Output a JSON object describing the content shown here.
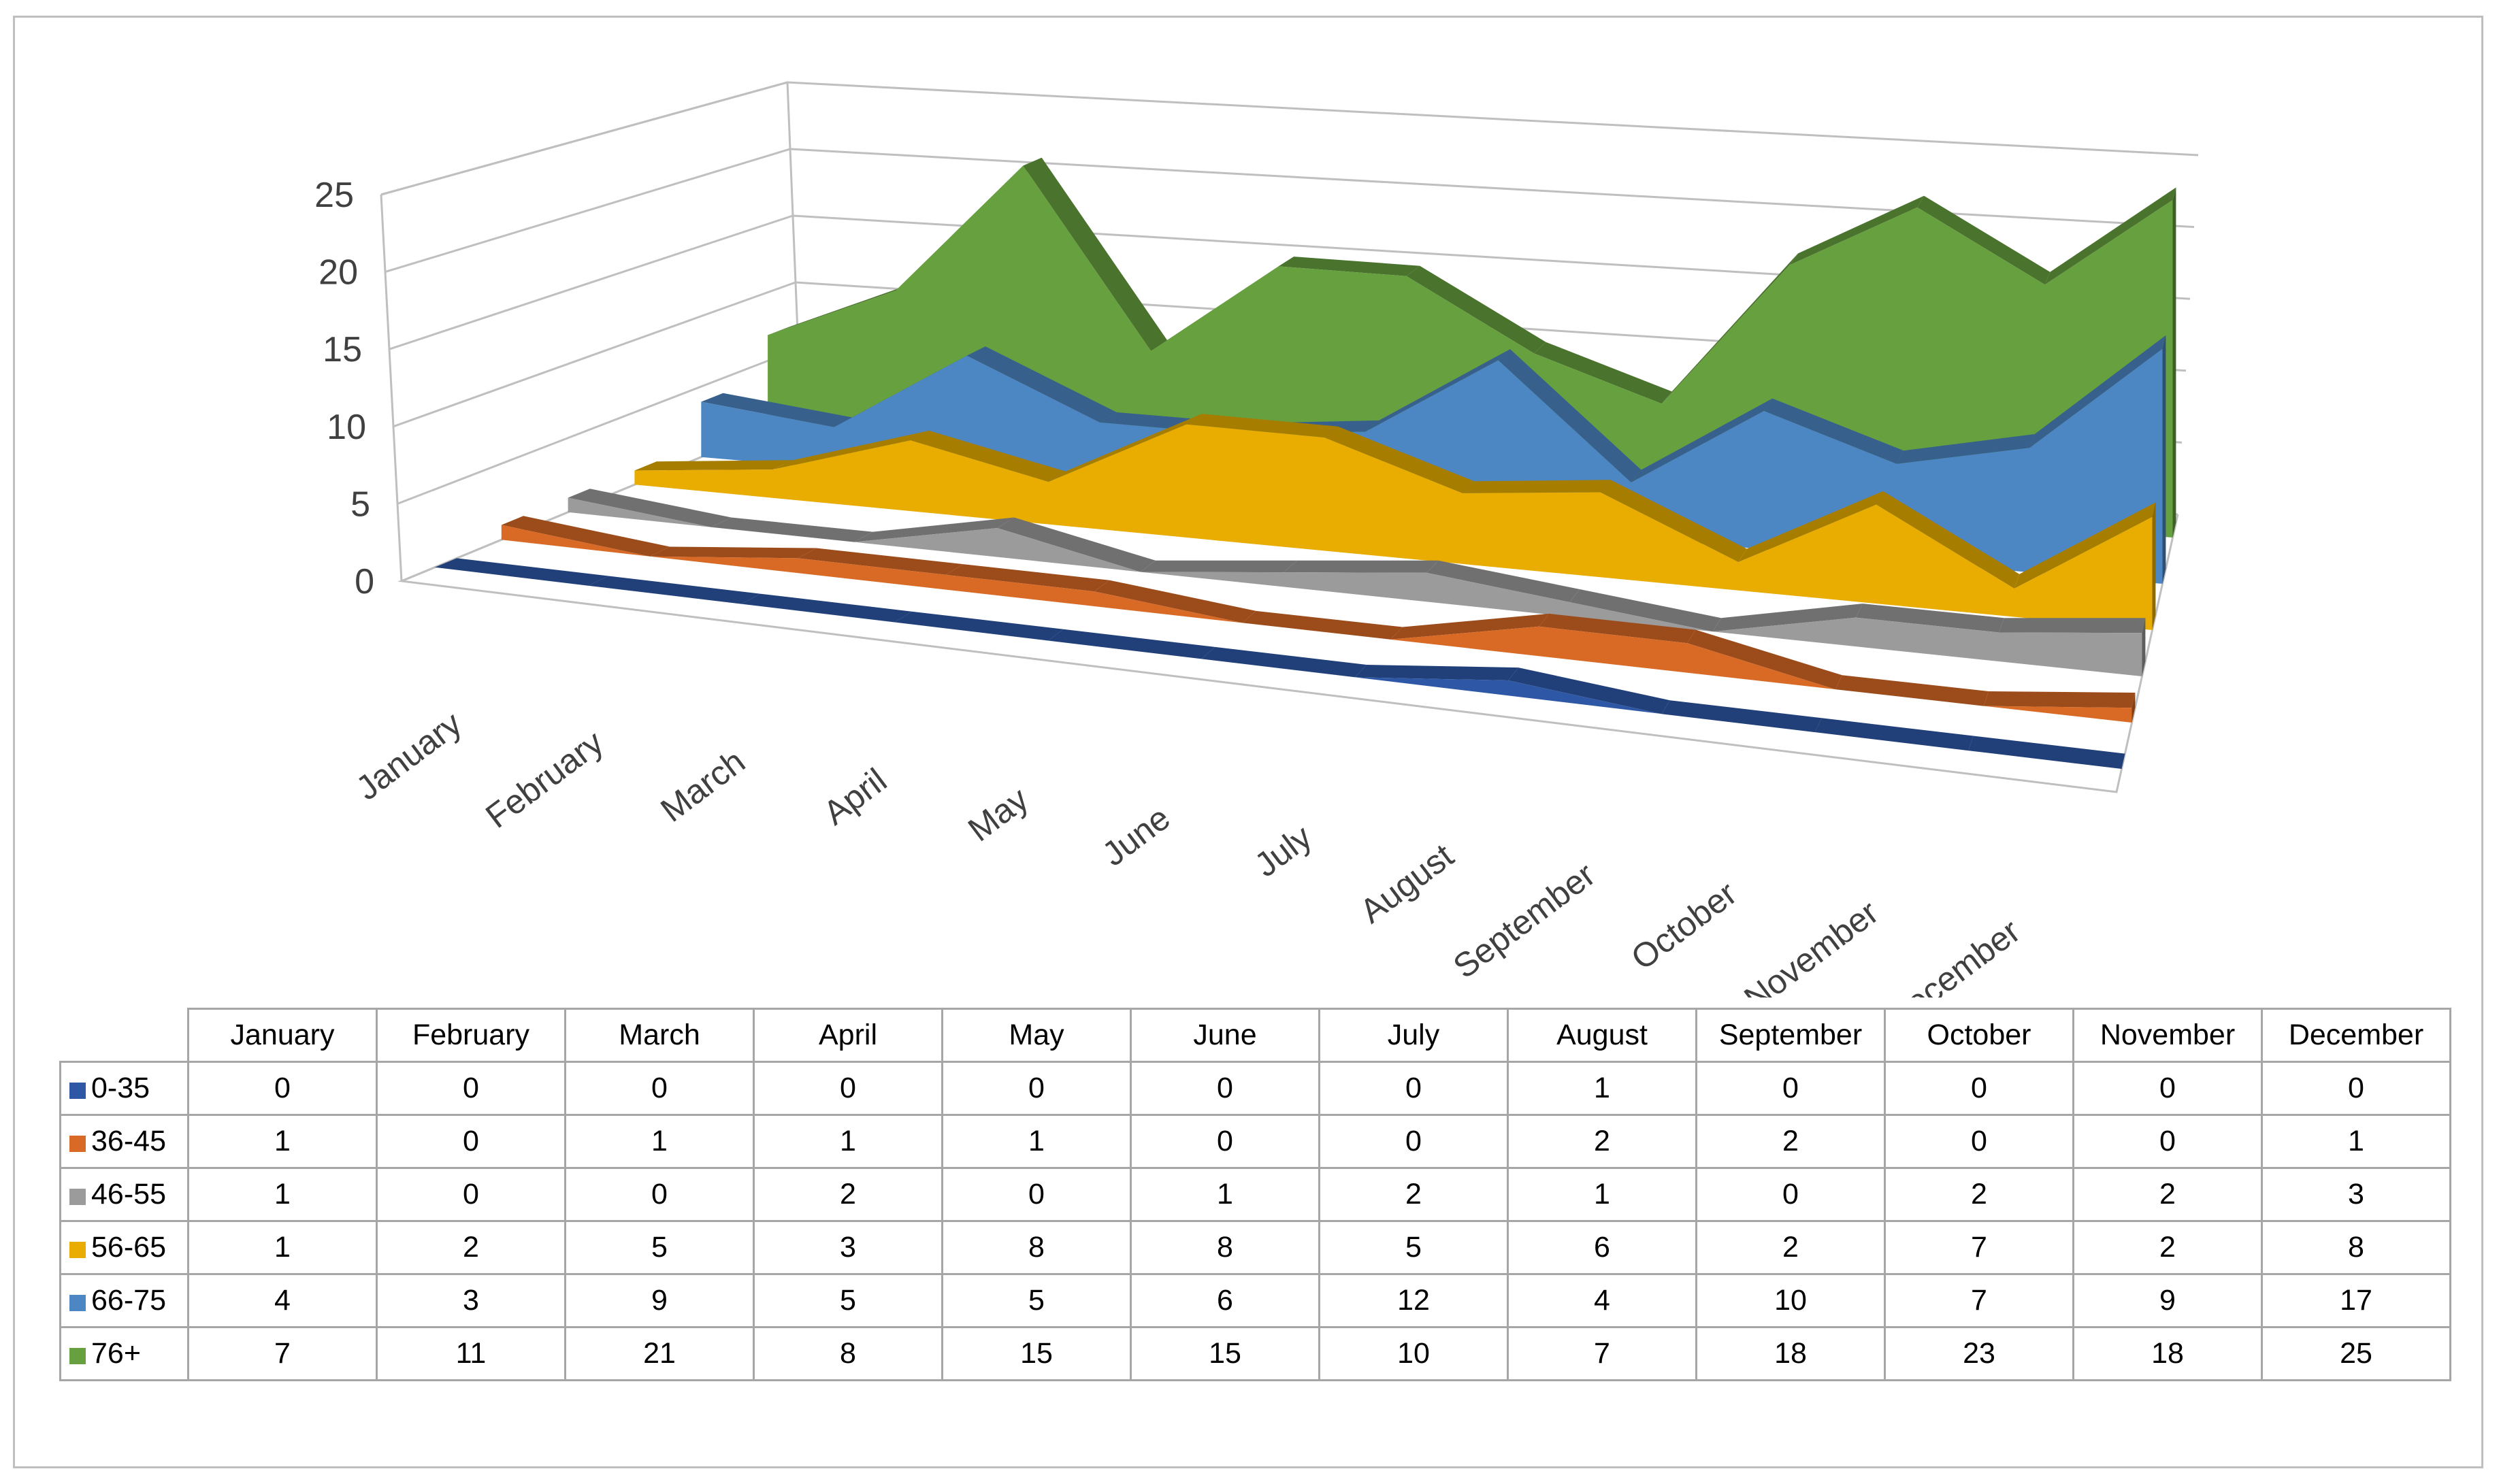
{
  "chart_data": {
    "type": "area",
    "variant": "3d-area",
    "categories": [
      "January",
      "February",
      "March",
      "April",
      "May",
      "June",
      "July",
      "August",
      "September",
      "October",
      "November",
      "December"
    ],
    "series": [
      {
        "name": "0-35",
        "color": "#2e58a6",
        "values": [
          0,
          0,
          0,
          0,
          0,
          0,
          0,
          1,
          0,
          0,
          0,
          0
        ]
      },
      {
        "name": "36-45",
        "color": "#d96a26",
        "values": [
          1,
          0,
          1,
          1,
          1,
          0,
          0,
          2,
          2,
          0,
          0,
          1
        ]
      },
      {
        "name": "46-55",
        "color": "#9b9b9b",
        "values": [
          1,
          0,
          0,
          2,
          0,
          1,
          2,
          1,
          0,
          2,
          2,
          3
        ]
      },
      {
        "name": "56-65",
        "color": "#e8ad00",
        "values": [
          1,
          2,
          5,
          3,
          8,
          8,
          5,
          6,
          2,
          7,
          2,
          8
        ]
      },
      {
        "name": "66-75",
        "color": "#4c86c3",
        "values": [
          4,
          3,
          9,
          5,
          5,
          6,
          12,
          4,
          10,
          7,
          9,
          17
        ]
      },
      {
        "name": "76+",
        "color": "#67a03f",
        "values": [
          7,
          11,
          21,
          8,
          15,
          15,
          10,
          7,
          18,
          23,
          18,
          25
        ]
      }
    ],
    "yticks": [
      "0",
      "5",
      "10",
      "15",
      "20",
      "25"
    ],
    "ylim": [
      0,
      25
    ],
    "grid": true,
    "title": "",
    "xlabel": "",
    "ylabel": "",
    "data_table": true
  }
}
